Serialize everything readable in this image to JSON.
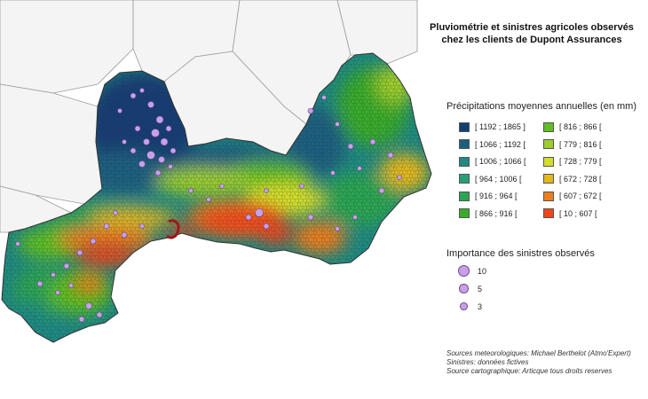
{
  "title_line1": "Pluviométrie et sinistres agricoles observés",
  "title_line2": "chez les clients de Dupont Assurances",
  "precip_legend": {
    "title": "Précipitations moyennes annuelles (en mm)",
    "classes": [
      {
        "label": "[ 1192 ; 1865 ]",
        "color": "#123e74"
      },
      {
        "label": "[ 1066 ; 1192 [",
        "color": "#1b5f80"
      },
      {
        "label": "[ 1006 ; 1066 [",
        "color": "#1e8a82"
      },
      {
        "label": "[ 964 ; 1006 [",
        "color": "#27a074"
      },
      {
        "label": "[ 916 ; 964 [",
        "color": "#2aa552"
      },
      {
        "label": "[ 866 ; 916 [",
        "color": "#39ab2b"
      },
      {
        "label": "[ 816 ; 866 [",
        "color": "#5fbf24"
      },
      {
        "label": "[ 779 ; 816 [",
        "color": "#9ccd2c"
      },
      {
        "label": "[ 728 ; 779 [",
        "color": "#d3dd2c"
      },
      {
        "label": "[ 672 ; 728 [",
        "color": "#e3b81b"
      },
      {
        "label": "[ 607 ; 672 [",
        "color": "#ec7e1c"
      },
      {
        "label": "[ 10 ; 607 [",
        "color": "#f0441b"
      }
    ]
  },
  "claims_legend": {
    "title": "Importance des sinistres observés",
    "entries": [
      {
        "label": "10",
        "value": 10
      },
      {
        "label": "5",
        "value": 5
      },
      {
        "label": "3",
        "value": 3
      }
    ],
    "color": "#c8a0ea"
  },
  "sources": [
    "Sources meteorologiques: Michael Berthelot (Atmo'Expert)",
    "Sinistres: données fictives",
    "Source cartographique: Articque tous droits reserves"
  ]
}
